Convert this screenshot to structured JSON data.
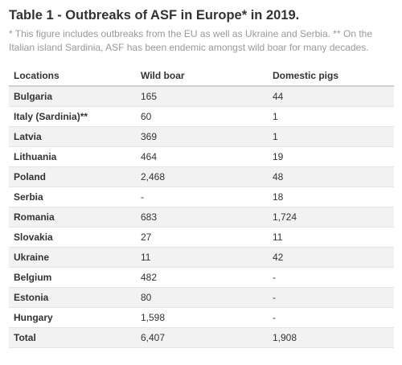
{
  "title": "Table 1 - Outbreaks of ASF in Europe* in 2019.",
  "note": "* This figure includes outbreaks from the EU as well as Ukraine and Serbia. ** On the Italian island Sardinia, ASF has been endemic amongst wild boar for many decades.",
  "table": {
    "headers": [
      "Locations",
      "Wild boar",
      "Domestic pigs"
    ],
    "rows": [
      [
        "Bulgaria",
        "165",
        "44"
      ],
      [
        "Italy (Sardinia)**",
        "60",
        "1"
      ],
      [
        "Latvia",
        "369",
        "1"
      ],
      [
        "Lithuania",
        "464",
        "19"
      ],
      [
        "Poland",
        "2,468",
        "48"
      ],
      [
        "Serbia",
        "-",
        "18"
      ],
      [
        "Romania",
        "683",
        "1,724"
      ],
      [
        "Slovakia",
        "27",
        "11"
      ],
      [
        "Ukraine",
        "11",
        "42"
      ],
      [
        "Belgium",
        "482",
        "-"
      ],
      [
        "Estonia",
        "80",
        "-"
      ],
      [
        "Hungary",
        "1,598",
        "-"
      ],
      [
        "Total",
        "6,407",
        "1,908"
      ]
    ]
  }
}
